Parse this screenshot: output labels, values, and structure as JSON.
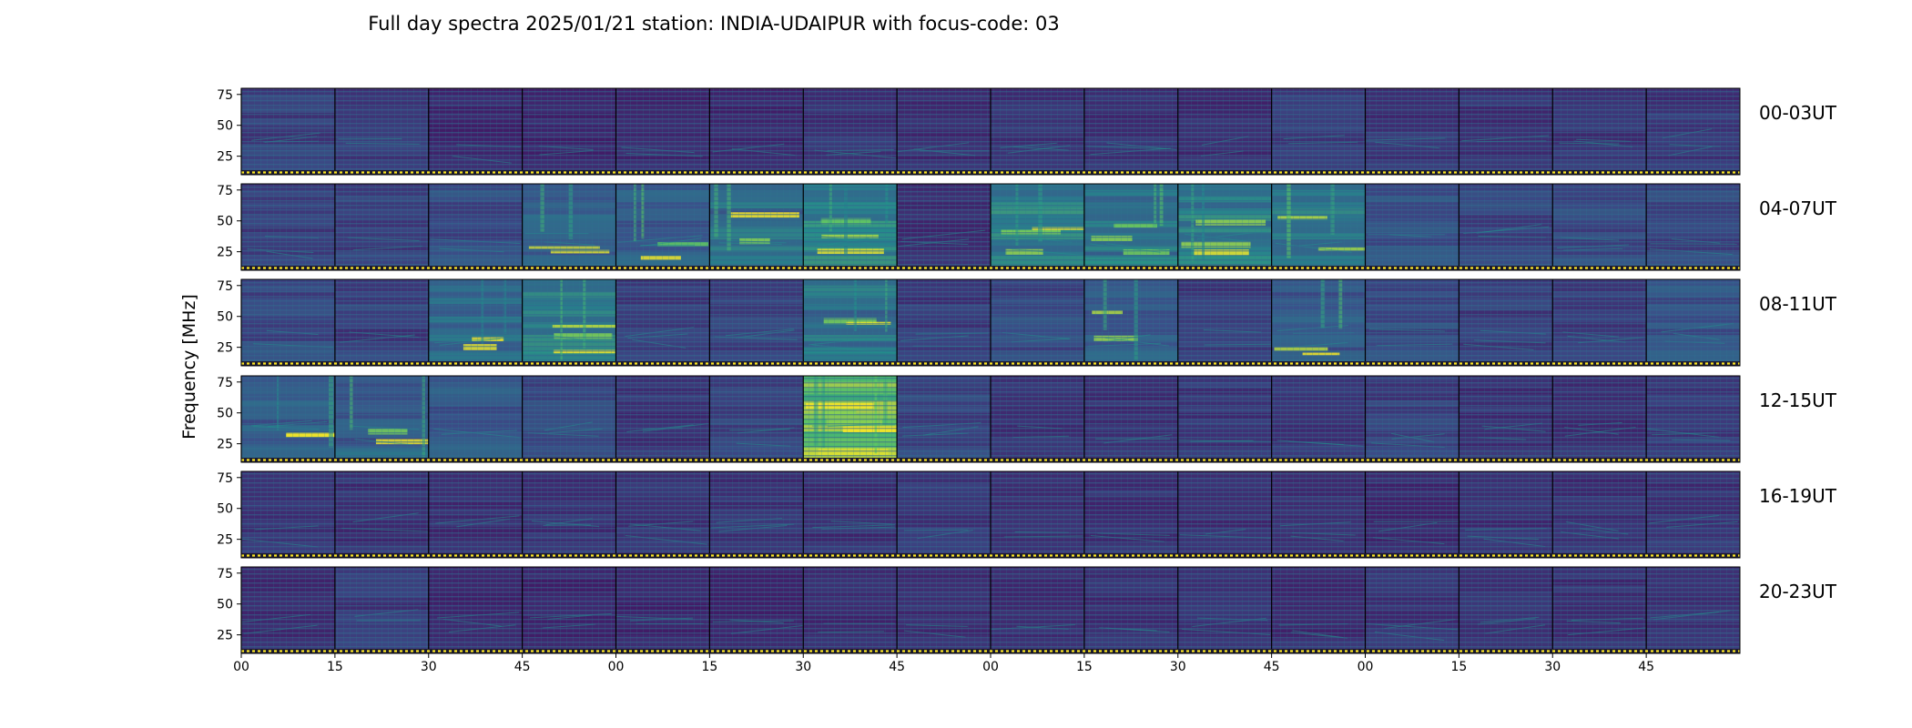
{
  "chart_data": {
    "type": "heatmap",
    "title": "Full day spectra 2025/01/21 station: INDIA-UDAIPUR with focus-code: 03",
    "ylabel": "Frequency [MHz]",
    "xlabel": "",
    "ylim": [
      10,
      80
    ],
    "y_ticks": [
      25,
      50,
      75
    ],
    "x_tick_labels": [
      "00",
      "15",
      "30",
      "45",
      "00",
      "15",
      "30",
      "45",
      "00",
      "15",
      "30",
      "45",
      "00",
      "15",
      "30",
      "45"
    ],
    "rows": [
      {
        "label": "00-03UT",
        "panels": [
          0.2,
          0.18,
          0.12,
          0.12,
          0.13,
          0.12,
          0.16,
          0.14,
          0.15,
          0.15,
          0.14,
          0.18,
          0.16,
          0.15,
          0.16,
          0.17
        ]
      },
      {
        "label": "04-07UT",
        "panels": [
          0.2,
          0.2,
          0.25,
          0.32,
          0.3,
          0.38,
          0.5,
          0.14,
          0.45,
          0.42,
          0.45,
          0.4,
          0.25,
          0.22,
          0.23,
          0.22
        ]
      },
      {
        "label": "08-11UT",
        "panels": [
          0.24,
          0.2,
          0.35,
          0.42,
          0.18,
          0.2,
          0.4,
          0.18,
          0.24,
          0.3,
          0.18,
          0.3,
          0.24,
          0.2,
          0.18,
          0.28
        ]
      },
      {
        "label": "12-15UT",
        "panels": [
          0.3,
          0.32,
          0.28,
          0.22,
          0.16,
          0.2,
          0.75,
          0.22,
          0.15,
          0.15,
          0.17,
          0.17,
          0.2,
          0.16,
          0.15,
          0.17
        ]
      },
      {
        "label": "16-19UT",
        "panels": [
          0.17,
          0.15,
          0.14,
          0.16,
          0.15,
          0.15,
          0.15,
          0.17,
          0.14,
          0.15,
          0.14,
          0.14,
          0.13,
          0.15,
          0.15,
          0.16
        ]
      },
      {
        "label": "20-23UT",
        "panels": [
          0.14,
          0.18,
          0.13,
          0.12,
          0.12,
          0.12,
          0.13,
          0.14,
          0.14,
          0.15,
          0.15,
          0.14,
          0.16,
          0.15,
          0.15,
          0.15
        ]
      }
    ],
    "colormap": "viridis",
    "colormap_stops": [
      "#440154",
      "#3b528b",
      "#21918c",
      "#5ec962",
      "#fde725"
    ],
    "baseline_color": "#fde725",
    "grid": false,
    "legend": "none"
  }
}
